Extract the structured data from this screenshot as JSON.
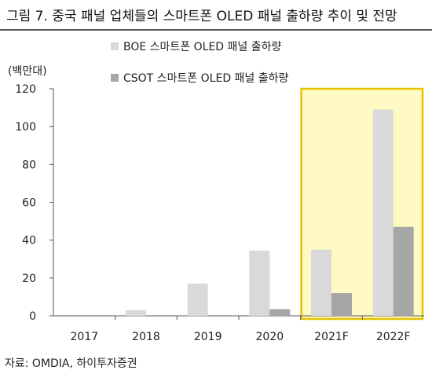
{
  "title": "그림 7. 중국 패널 업체들의 스마트폰 OLED 패널 출하량 추이 및 전망",
  "source": "자료: OMDIA, 하이투자증권",
  "colors": {
    "series_1": "#d9d9d9",
    "series_2": "#a6a6a6",
    "highlight_fill": "#fff9c4",
    "highlight_border": "#e6c200"
  },
  "chart_data": {
    "type": "bar",
    "ylabel": "(백만대)",
    "xlabel": "",
    "ylim": [
      0,
      120
    ],
    "yticks": [
      0,
      20,
      40,
      60,
      80,
      100,
      120
    ],
    "categories": [
      "2017",
      "2018",
      "2019",
      "2020",
      "2021F",
      "2022F"
    ],
    "series": [
      {
        "name": "BOE 스마트폰 OLED 패널 출하량",
        "values": [
          0,
          3,
          17,
          34.5,
          35,
          109
        ]
      },
      {
        "name": "CSOT 스마트폰 OLED 패널 출하량",
        "values": [
          0,
          0,
          0,
          3.5,
          12,
          47
        ]
      }
    ],
    "highlight": {
      "categories": [
        "2021F",
        "2022F"
      ],
      "label": ""
    },
    "grid": false,
    "legend_position": "top"
  }
}
